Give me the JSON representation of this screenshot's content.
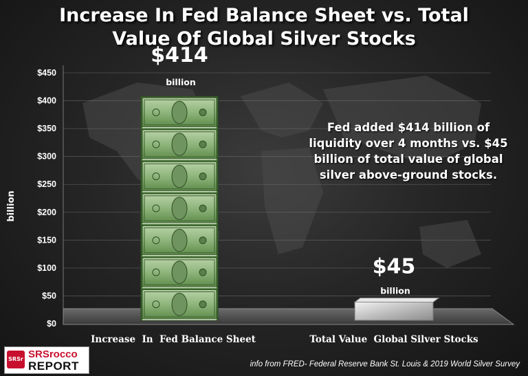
{
  "title": {
    "line1": "Increase In Fed Balance Sheet vs. Total",
    "line2": "Value Of Global Silver Stocks"
  },
  "annotation": {
    "line1": "Fed added $414 billion of",
    "line2": "liquidity over 4 months vs. $45",
    "line3": "billion of total value of global",
    "line4": "silver above-ground stocks."
  },
  "source": "info from FRED- Federal Reserve Bank St. Louis & 2019 World Silver Survey",
  "logo": {
    "badge": "SRSr",
    "line1": "SRSrocco",
    "line2": "REPORT"
  },
  "colors": {
    "money_green": "#4e7a3a",
    "money_light": "#a9c99a",
    "silver": "#cfcfcf",
    "text": "#ffffff",
    "grid": "#7a7a7a"
  },
  "chart_data": {
    "type": "bar",
    "categories": [
      "Increase  In  Fed Balance Sheet",
      "Total Value  Global Silver Stocks"
    ],
    "values": [
      414,
      45
    ],
    "data_labels": [
      {
        "value": "$414",
        "unit": "billion"
      },
      {
        "value": "$45",
        "unit": "billion"
      }
    ],
    "bar_styles": [
      "stacked-dollar-bills",
      "silver-bullion"
    ],
    "ylabel": "billion",
    "yticks": [
      "$0",
      "$50",
      "$100",
      "$150",
      "$200",
      "$250",
      "$300",
      "$350",
      "$400",
      "$450"
    ],
    "ylim": [
      0,
      450
    ],
    "grid": true,
    "legend": "none"
  }
}
